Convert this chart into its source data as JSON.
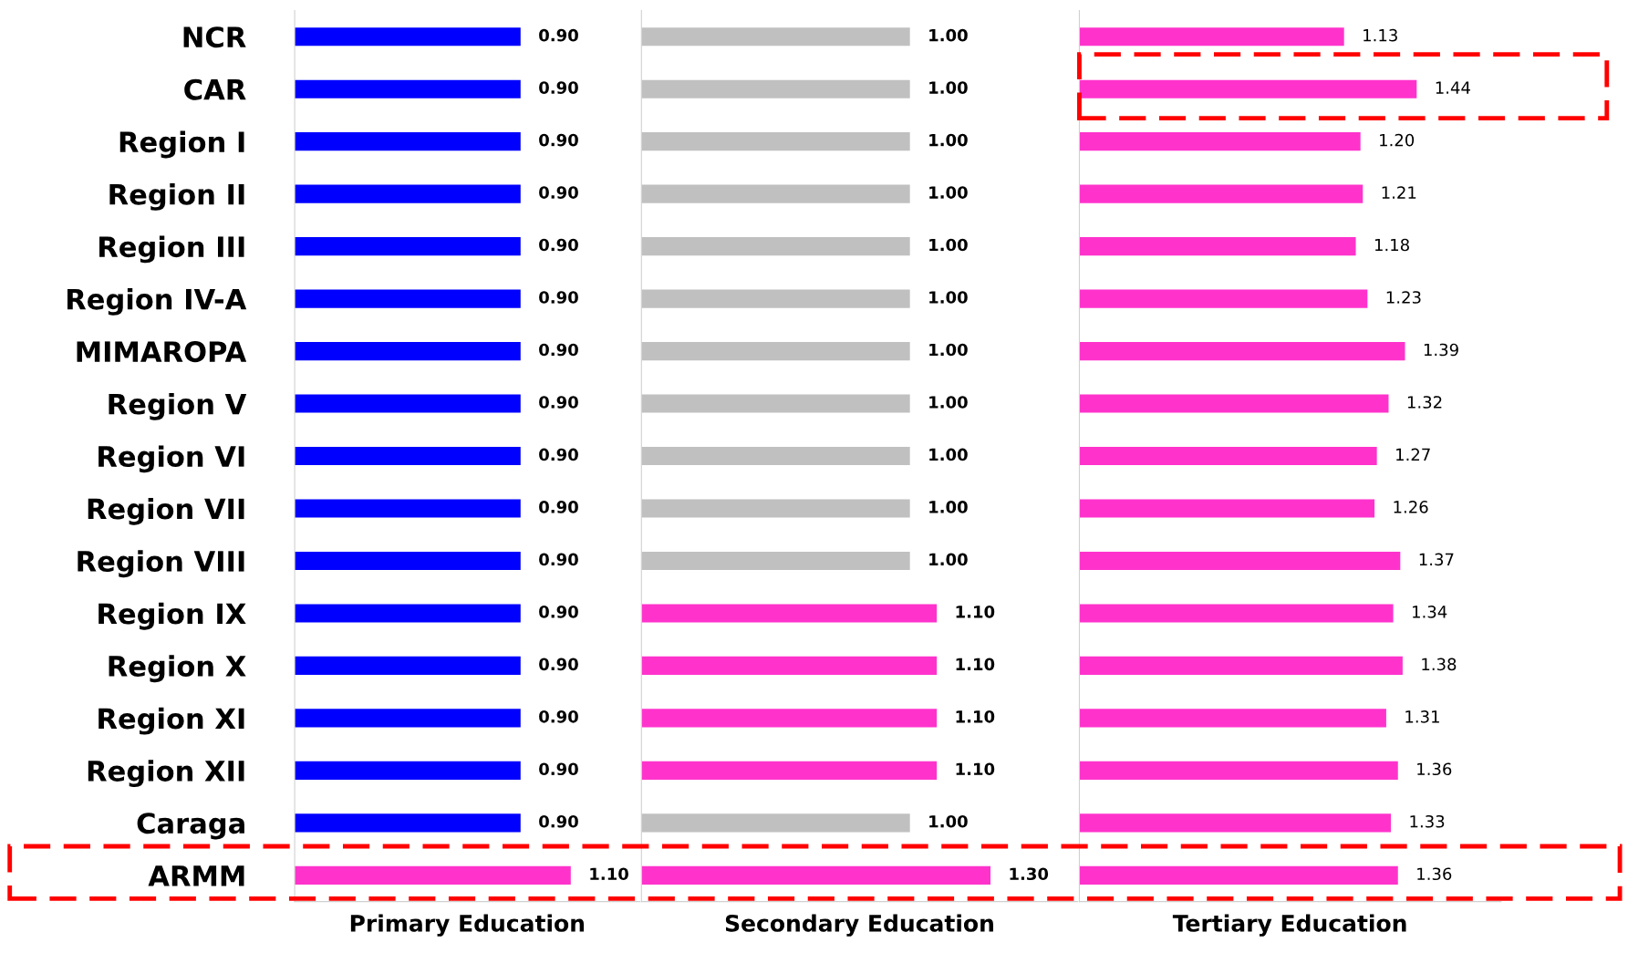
{
  "chart_data": [
    {
      "type": "bar",
      "orientation": "horizontal",
      "xlabel": "Primary Education",
      "tick_labels": "y",
      "data_labels": true,
      "categories": [
        "NCR",
        "CAR",
        "Region I",
        "Region II",
        "Region III",
        "Region IV-A",
        "MIMAROPA",
        "Region V",
        "Region VI",
        "Region VII",
        "Region VIII",
        "Region IX",
        "Region X",
        "Region XI",
        "Region XII",
        "Caraga",
        "ARMM"
      ],
      "values": [
        0.9,
        0.9,
        0.9,
        0.9,
        0.9,
        0.9,
        0.9,
        0.9,
        0.9,
        0.9,
        0.9,
        0.9,
        0.9,
        0.9,
        0.9,
        0.9,
        1.1
      ],
      "value_labels": [
        "0.90",
        "0.90",
        "0.90",
        "0.90",
        "0.90",
        "0.90",
        "0.90",
        "0.90",
        "0.90",
        "0.90",
        "0.90",
        "0.90",
        "0.90",
        "0.90",
        "0.90",
        "0.90",
        "1.10"
      ],
      "colors": [
        "#0000ff",
        "#0000ff",
        "#0000ff",
        "#0000ff",
        "#0000ff",
        "#0000ff",
        "#0000ff",
        "#0000ff",
        "#0000ff",
        "#0000ff",
        "#0000ff",
        "#0000ff",
        "#0000ff",
        "#0000ff",
        "#0000ff",
        "#0000ff",
        "#ff33cc"
      ]
    },
    {
      "type": "bar",
      "orientation": "horizontal",
      "xlabel": "Secondary Education",
      "data_labels": true,
      "categories": [
        null,
        null,
        null,
        null,
        null,
        null,
        null,
        null,
        null,
        null,
        null,
        null,
        null,
        null,
        null,
        null,
        null
      ],
      "values": [
        1.0,
        1.0,
        1.0,
        1.0,
        1.0,
        1.0,
        1.0,
        1.0,
        1.0,
        1.0,
        1.0,
        1.1,
        1.1,
        1.1,
        1.1,
        1.0,
        1.3
      ],
      "value_labels": [
        "1.00",
        "1.00",
        "1.00",
        "1.00",
        "1.00",
        "1.00",
        "1.00",
        "1.00",
        "1.00",
        "1.00",
        "1.00",
        "1.10",
        "1.10",
        "1.10",
        "1.10",
        "1.00",
        "1.30"
      ],
      "colors": [
        "#c0c0c0",
        "#c0c0c0",
        "#c0c0c0",
        "#c0c0c0",
        "#c0c0c0",
        "#c0c0c0",
        "#c0c0c0",
        "#c0c0c0",
        "#c0c0c0",
        "#c0c0c0",
        "#c0c0c0",
        "#ff33cc",
        "#ff33cc",
        "#ff33cc",
        "#ff33cc",
        "#c0c0c0",
        "#ff33cc"
      ]
    },
    {
      "type": "bar",
      "orientation": "horizontal",
      "xlabel": "Tertiary Education",
      "data_labels": true,
      "categories": [
        null,
        null,
        null,
        null,
        null,
        null,
        null,
        null,
        null,
        null,
        null,
        null,
        null,
        null,
        null,
        null,
        null
      ],
      "values": [
        1.13,
        1.44,
        1.2,
        1.21,
        1.18,
        1.23,
        1.39,
        1.32,
        1.27,
        1.26,
        1.37,
        1.34,
        1.38,
        1.31,
        1.36,
        1.33,
        1.36
      ],
      "value_labels": [
        "1.13",
        "1.44",
        "1.20",
        "1.21",
        "1.18",
        "1.23",
        "1.39",
        "1.32",
        "1.27",
        "1.26",
        "1.37",
        "1.34",
        "1.38",
        "1.31",
        "1.36",
        "1.33",
        "1.36"
      ],
      "colors": [
        "#ff33cc",
        "#ff33cc",
        "#ff33cc",
        "#ff33cc",
        "#ff33cc",
        "#ff33cc",
        "#ff33cc",
        "#ff33cc",
        "#ff33cc",
        "#ff33cc",
        "#ff33cc",
        "#ff33cc",
        "#ff33cc",
        "#ff33cc",
        "#ff33cc",
        "#ff33cc",
        "#ff33cc"
      ]
    }
  ]
}
